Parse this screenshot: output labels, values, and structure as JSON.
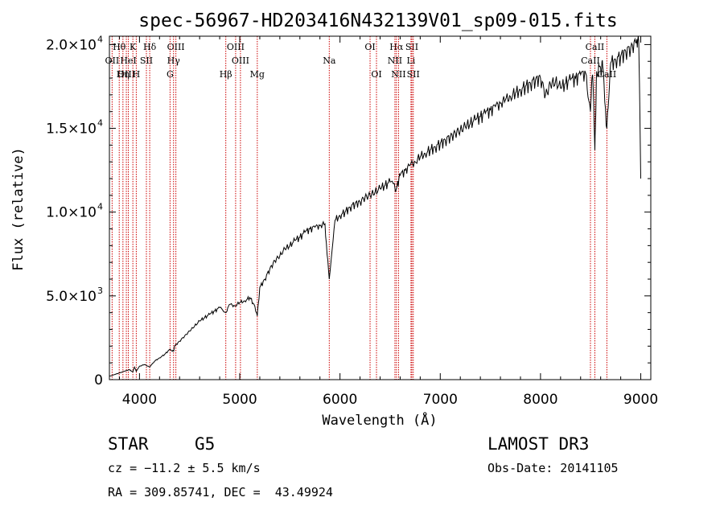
{
  "chart_data": {
    "type": "line",
    "title": "spec-56967-HD203416N432139V01_sp09-015.fits",
    "xlabel": "Wavelength (Å)",
    "ylabel": "Flux (relative)",
    "xlim": [
      3700,
      9100
    ],
    "ylim": [
      0,
      20500
    ],
    "x_ticks": [
      4000,
      5000,
      6000,
      7000,
      8000,
      9000
    ],
    "x_tick_labels": [
      "4000",
      "5000",
      "6000",
      "7000",
      "8000",
      "9000"
    ],
    "y_ticks": [
      0,
      5000,
      10000,
      15000,
      20000
    ],
    "y_tick_labels": [
      {
        "mant": "0",
        "exp": ""
      },
      {
        "mant": "5.0×10",
        "exp": "3"
      },
      {
        "mant": "1.0×10",
        "exp": "4"
      },
      {
        "mant": "1.5×10",
        "exp": "4"
      },
      {
        "mant": "2.0×10",
        "exp": "4"
      }
    ],
    "spectrum": {
      "name": "flux",
      "x": [
        3700,
        3750,
        3800,
        3850,
        3900,
        3933,
        3950,
        3968,
        4000,
        4050,
        4102,
        4150,
        4200,
        4250,
        4300,
        4340,
        4350,
        4400,
        4450,
        4500,
        4550,
        4600,
        4650,
        4700,
        4750,
        4800,
        4861,
        4900,
        4950,
        5000,
        5050,
        5100,
        5150,
        5175,
        5200,
        5250,
        5300,
        5350,
        5400,
        5450,
        5500,
        5550,
        5600,
        5650,
        5700,
        5750,
        5800,
        5850,
        5893,
        5950,
        6000,
        6050,
        6100,
        6150,
        6200,
        6250,
        6300,
        6350,
        6400,
        6450,
        6500,
        6563,
        6600,
        6650,
        6700,
        6750,
        6800,
        6850,
        6900,
        6950,
        7000,
        7050,
        7100,
        7150,
        7200,
        7250,
        7300,
        7350,
        7400,
        7450,
        7500,
        7550,
        7600,
        7650,
        7700,
        7750,
        7800,
        7850,
        7900,
        7950,
        8000,
        8050,
        8100,
        8150,
        8200,
        8250,
        8300,
        8350,
        8400,
        8450,
        8498,
        8520,
        8542,
        8560,
        8600,
        8620,
        8662,
        8700,
        8750,
        8800,
        8850,
        8900,
        8950,
        8980,
        9000
      ],
      "y": [
        200,
        300,
        400,
        500,
        600,
        450,
        750,
        500,
        800,
        900,
        750,
        1100,
        1300,
        1500,
        1800,
        1700,
        2000,
        2300,
        2600,
        2900,
        3200,
        3500,
        3700,
        3900,
        4100,
        4300,
        4000,
        4500,
        4400,
        4600,
        4700,
        4900,
        4400,
        3800,
        5500,
        6000,
        6600,
        7100,
        7400,
        7800,
        8000,
        8300,
        8500,
        8800,
        9000,
        9100,
        9200,
        9300,
        6000,
        9500,
        9800,
        10000,
        10300,
        10500,
        10600,
        10900,
        11000,
        11200,
        11400,
        11600,
        11800,
        11400,
        12200,
        12500,
        12800,
        13000,
        13300,
        13500,
        13700,
        13900,
        14100,
        14300,
        14500,
        14700,
        14900,
        15100,
        15300,
        15500,
        15700,
        15900,
        16100,
        16300,
        16500,
        16700,
        16900,
        17100,
        17300,
        17500,
        17700,
        17900,
        18000,
        17000,
        17600,
        17800,
        17400,
        17700,
        17900,
        18000,
        18200,
        18300,
        16000,
        18200,
        13700,
        18400,
        18600,
        18700,
        15000,
        18900,
        19100,
        19300,
        19600,
        19800,
        20100,
        20200,
        12000
      ]
    },
    "line_markers": [
      {
        "label": "Hθ",
        "wave": 3798,
        "row": 1
      },
      {
        "label": "OII",
        "wave": 3727,
        "row": 2
      },
      {
        "label": "OIII",
        "wave": 3869,
        "row": 3
      },
      {
        "label": "K",
        "wave": 3934,
        "row": 1
      },
      {
        "label": "HeI",
        "wave": 3889,
        "row": 2
      },
      {
        "label": "Hη",
        "wave": 3835,
        "row": 3
      },
      {
        "label": "SII",
        "wave": 4069,
        "row": 2
      },
      {
        "label": "H",
        "wave": 3968,
        "row": 3
      },
      {
        "label": "Hδ",
        "wave": 4102,
        "row": 1
      },
      {
        "label": "OIII",
        "wave": 4363,
        "row": 1
      },
      {
        "label": "Hγ",
        "wave": 4340,
        "row": 2
      },
      {
        "label": "G",
        "wave": 4305,
        "row": 3
      },
      {
        "label": "Hβ",
        "wave": 4861,
        "row": 3
      },
      {
        "label": "OIII",
        "wave": 4959,
        "row": 1
      },
      {
        "label": "OIII",
        "wave": 5007,
        "row": 2
      },
      {
        "label": "Mg",
        "wave": 5175,
        "row": 3
      },
      {
        "label": "Na",
        "wave": 5893,
        "row": 2
      },
      {
        "label": "OI",
        "wave": 6300,
        "row": 1
      },
      {
        "label": "OI",
        "wave": 6364,
        "row": 3
      },
      {
        "label": "Hα",
        "wave": 6563,
        "row": 1
      },
      {
        "label": "NII",
        "wave": 6548,
        "row": 2
      },
      {
        "label": "NII",
        "wave": 6584,
        "row": 3
      },
      {
        "label": "SII",
        "wave": 6717,
        "row": 1
      },
      {
        "label": "Li",
        "wave": 6708,
        "row": 2
      },
      {
        "label": "SII",
        "wave": 6731,
        "row": 3
      },
      {
        "label": "CaII",
        "wave": 8542,
        "row": 1
      },
      {
        "label": "CaII",
        "wave": 8498,
        "row": 2
      },
      {
        "label": "CaII",
        "wave": 8662,
        "row": 3
      }
    ],
    "colors": {
      "spectrum": "#000000",
      "markers": "#cc0000"
    }
  },
  "info": {
    "object_class": "STAR",
    "subclass": "G5",
    "survey": "LAMOST DR3",
    "redshift": "cz = −11.2 ± 5.5 km/s",
    "obs_date": "Obs-Date: 20141105",
    "coords": "RA = 309.85741, DEC =  43.49924"
  }
}
